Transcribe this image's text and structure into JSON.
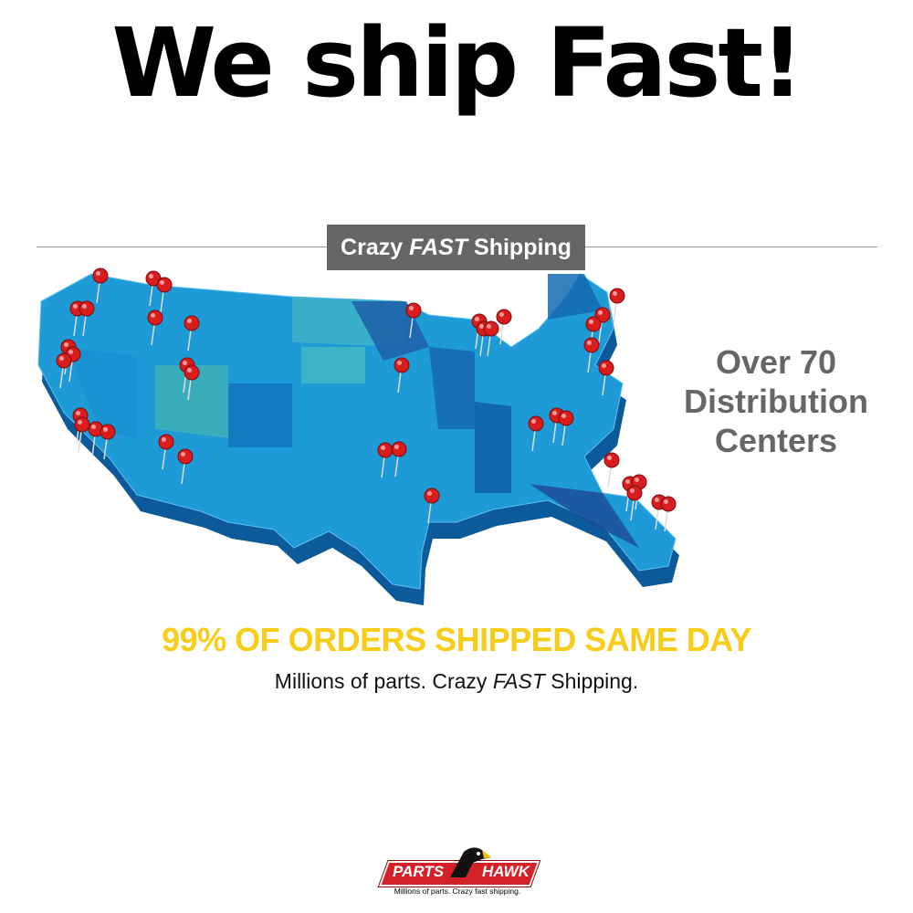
{
  "headline": "We ship Fast!",
  "banner": {
    "pre": "Crazy",
    "emph": "FAST",
    "post": "Shipping"
  },
  "side": [
    "Over 70",
    "Distribution",
    "Centers"
  ],
  "tagline": "99% OF ORDERS SHIPPED SAME DAY",
  "subline": {
    "pre": "Millions of parts. Crazy",
    "emph": "FAST",
    "post": "Shipping."
  },
  "logo": {
    "word1": "PARTS",
    "word2": "HAWK",
    "tag": "Millions of parts. Crazy fast shipping."
  },
  "colors": {
    "map": "#1e9ad6",
    "pin": "#d91c1c",
    "tagline": "#f7cd1a",
    "banner": "#666666"
  }
}
